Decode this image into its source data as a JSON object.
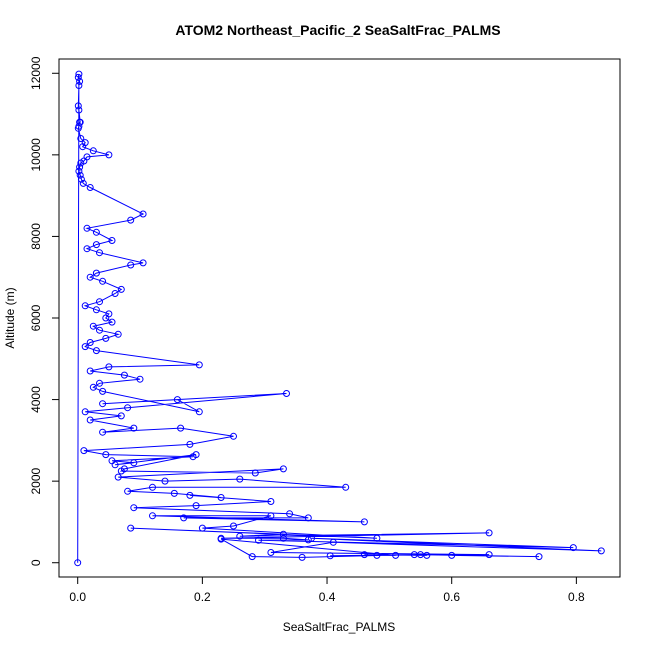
{
  "chart_data": {
    "type": "scatter",
    "title": "ATOM2 Northeast_Pacific_2 SeaSaltFrac_PALMS",
    "xlabel": "SeaSaltFrac_PALMS",
    "ylabel": "Altitude (m)",
    "xlim": [
      -0.03,
      0.87
    ],
    "ylim": [
      -350,
      12350
    ],
    "xticks": [
      "0.0",
      "0.2",
      "0.4",
      "0.6",
      "0.8"
    ],
    "xtick_values": [
      0,
      0.2,
      0.4,
      0.6,
      0.8
    ],
    "yticks": [
      "0",
      "2000",
      "4000",
      "6000",
      "8000",
      "10000",
      "12000"
    ],
    "ytick_values": [
      0,
      2000,
      4000,
      6000,
      8000,
      10000,
      12000
    ],
    "grid": false,
    "legend": "none",
    "color": "#0000FF",
    "marker": "open-circle",
    "connected": true,
    "series": [
      {
        "x": [
          0.0,
          0.002,
          0.001,
          0.003,
          0.002,
          0.001,
          0.002,
          0.004,
          0.003,
          0.002,
          0.001,
          0.005,
          0.012,
          0.008,
          0.025,
          0.05,
          0.015,
          0.01,
          0.005,
          0.003,
          0.002,
          0.004,
          0.006,
          0.009,
          0.02,
          0.105,
          0.085,
          0.015,
          0.03,
          0.055,
          0.03,
          0.015,
          0.035,
          0.105,
          0.085,
          0.03,
          0.02,
          0.04,
          0.07,
          0.06,
          0.035,
          0.012,
          0.03,
          0.05,
          0.045,
          0.055,
          0.025,
          0.035,
          0.065,
          0.045,
          0.02,
          0.012,
          0.03,
          0.195,
          0.05,
          0.02,
          0.075,
          0.1,
          0.035,
          0.025,
          0.04,
          0.195,
          0.16,
          0.04,
          0.335,
          0.08,
          0.012,
          0.07,
          0.02,
          0.09,
          0.04,
          0.165,
          0.25,
          0.18,
          0.01,
          0.045,
          0.185,
          0.055,
          0.09,
          0.06,
          0.19,
          0.075,
          0.07,
          0.285,
          0.33,
          0.065,
          0.14,
          0.26,
          0.43,
          0.12,
          0.08,
          0.155,
          0.23,
          0.18,
          0.31,
          0.19,
          0.09,
          0.34,
          0.37,
          0.17,
          0.46,
          0.12,
          0.31,
          0.25,
          0.2,
          0.48,
          0.085,
          0.33,
          0.26,
          0.66,
          0.23,
          0.33,
          0.37,
          0.29,
          0.795,
          0.375,
          0.84,
          0.41,
          0.31,
          0.66,
          0.6,
          0.74,
          0.54,
          0.36,
          0.28,
          0.23,
          0.51,
          0.48,
          0.405,
          0.55,
          0.56,
          0.46
        ],
        "y": [
          0,
          11980,
          11900,
          11800,
          11700,
          11200,
          11100,
          10800,
          10800,
          10700,
          10650,
          10400,
          10300,
          10200,
          10100,
          10000,
          9950,
          9850,
          9800,
          9700,
          9600,
          9500,
          9400,
          9300,
          9200,
          8550,
          8400,
          8200,
          8100,
          7900,
          7800,
          7700,
          7600,
          7350,
          7300,
          7100,
          7000,
          6900,
          6700,
          6600,
          6400,
          6300,
          6200,
          6100,
          6000,
          5900,
          5800,
          5700,
          5600,
          5500,
          5400,
          5300,
          5200,
          4850,
          4800,
          4700,
          4600,
          4500,
          4400,
          4300,
          4200,
          3700,
          4000,
          3900,
          4150,
          3800,
          3700,
          3600,
          3500,
          3300,
          3200,
          3300,
          3100,
          2900,
          2750,
          2650,
          2600,
          2500,
          2450,
          2400,
          2650,
          2300,
          2250,
          2200,
          2300,
          2100,
          2000,
          2050,
          1850,
          1850,
          1750,
          1700,
          1600,
          1650,
          1500,
          1400,
          1350,
          1200,
          1100,
          1100,
          1000,
          1150,
          1150,
          900,
          850,
          600,
          850,
          700,
          650,
          730,
          600,
          600,
          560,
          550,
          370,
          600,
          290,
          500,
          250,
          200,
          180,
          150,
          200,
          130,
          150,
          580,
          180,
          180,
          170,
          200,
          180,
          200
        ]
      }
    ]
  }
}
